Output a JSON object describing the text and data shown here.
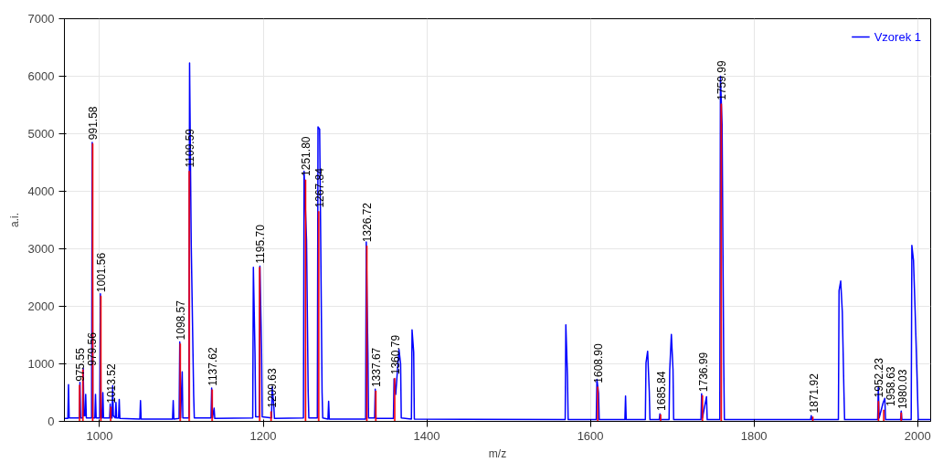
{
  "chart_data": {
    "type": "line",
    "xlabel": "m/z",
    "ylabel": "a.i.",
    "xlim": [
      957,
      2016
    ],
    "xticks": [
      1000,
      1200,
      1400,
      1600,
      1800,
      2000
    ],
    "ylim": [
      0,
      7000
    ],
    "yticks": [
      0,
      1000,
      2000,
      3000,
      4000,
      5000,
      6000,
      7000
    ],
    "grid": true,
    "legend": "top right",
    "series": [
      {
        "name": "Vzorek 1",
        "color": "#0000ff",
        "x": [
          957,
          961.2,
          962,
          962.8,
          975.2,
          976,
          976.8,
          979.2,
          980,
          980.8,
          982.2,
          983,
          983.8,
          990.2,
          991,
          991.8,
          994.2,
          995,
          995.8,
          1000.2,
          1001,
          1001.8,
          1003.2,
          1004,
          1004.8,
          1012.2,
          1013,
          1013.8,
          1015.2,
          1016,
          1016.8,
          1019.2,
          1020,
          1020.8,
          1023.2,
          1024,
          1024.8,
          1049.2,
          1050,
          1050.8,
          1089.2,
          1090,
          1090.8,
          1097.2,
          1098,
          1099,
          1101,
          1101.8,
          1109.2,
          1110,
          1112,
          1115,
          1115.8,
          1136.2,
          1137,
          1138,
          1140,
          1140.8,
          1187.2,
          1188,
          1190,
          1190.8,
          1195.2,
          1196,
          1198,
          1198.8,
          1210.2,
          1211,
          1213,
          1213.8,
          1249.2,
          1250,
          1253,
          1255,
          1255.8,
          1266.2,
          1267,
          1269,
          1270,
          1272,
          1272.8,
          1279.2,
          1280,
          1280.8,
          1325.2,
          1326,
          1328,
          1328.8,
          1336.2,
          1337,
          1337.8,
          1359.2,
          1360,
          1362,
          1366,
          1368,
          1368.8,
          1381.2,
          1382,
          1384,
          1384.8,
          1569.2,
          1570,
          1572,
          1572.8,
          1607.2,
          1608,
          1610,
          1610.8,
          1642.2,
          1643,
          1643.8,
          1667.2,
          1668,
          1670,
          1672,
          1672.8,
          1684.2,
          1685,
          1685.8,
          1696.2,
          1697,
          1699,
          1701,
          1701.8,
          1735.2,
          1736,
          1737,
          1742,
          1742.8,
          1758.2,
          1759,
          1761,
          1763,
          1763.8,
          1869.2,
          1870,
          1870.8,
          1903.2,
          1904,
          1906,
          1908,
          1910,
          1910.8,
          1951.2,
          1952,
          1953,
          1958,
          1960,
          1960.8,
          1979.2,
          1980,
          1980.8,
          1992.2,
          1993,
          1995,
          1997,
          2000,
          2000.8,
          2016
        ],
        "values": [
          50,
          50,
          640,
          60,
          60,
          680,
          60,
          60,
          920,
          100,
          100,
          470,
          60,
          60,
          4850,
          60,
          60,
          470,
          60,
          60,
          2220,
          60,
          60,
          500,
          60,
          60,
          300,
          60,
          60,
          620,
          100,
          60,
          330,
          60,
          60,
          380,
          50,
          40,
          360,
          40,
          40,
          360,
          40,
          50,
          1380,
          60,
          860,
          60,
          60,
          6230,
          3100,
          460,
          60,
          60,
          580,
          60,
          230,
          50,
          60,
          2680,
          1180,
          80,
          80,
          2700,
          1260,
          80,
          60,
          600,
          260,
          50,
          60,
          4350,
          3150,
          520,
          60,
          60,
          5120,
          5080,
          3650,
          500,
          60,
          40,
          350,
          40,
          40,
          3120,
          1200,
          60,
          60,
          560,
          50,
          50,
          740,
          470,
          1250,
          1000,
          60,
          40,
          1590,
          1200,
          40,
          30,
          1680,
          780,
          30,
          30,
          730,
          490,
          30,
          30,
          440,
          30,
          30,
          1020,
          1220,
          520,
          30,
          30,
          130,
          30,
          30,
          890,
          1510,
          900,
          30,
          30,
          480,
          60,
          430,
          30,
          30,
          6000,
          5170,
          1050,
          30,
          30,
          100,
          30,
          30,
          2270,
          2440,
          1900,
          500,
          30,
          30,
          600,
          60,
          330,
          400,
          30,
          30,
          180,
          30,
          30,
          3060,
          2800,
          1930,
          450,
          30,
          30
        ]
      },
      {
        "type": "bar",
        "color": "#ff0000",
        "x": [
          975.55,
          979.56,
          991.58,
          1001.56,
          1013.52,
          1098.57,
          1109.59,
          1137.62,
          1195.7,
          1209.63,
          1251.8,
          1267.84,
          1326.72,
          1337.67,
          1360.79,
          1608.9,
          1685.84,
          1736.99,
          1759.99,
          1871.92,
          1952.23,
          1958.63,
          1980.03
        ],
        "values": [
          630,
          900,
          4830,
          2180,
          250,
          1350,
          4350,
          550,
          2680,
          170,
          4200,
          3650,
          3050,
          530,
          750,
          600,
          120,
          450,
          5520,
          80,
          350,
          200,
          150
        ]
      }
    ],
    "annotations": [
      {
        "text": "975.55",
        "x": 975.55,
        "y": 630
      },
      {
        "text": "979.56",
        "x": 979.56,
        "y": 900
      },
      {
        "text": "991.58",
        "x": 991.58,
        "y": 4830
      },
      {
        "text": "1001.56",
        "x": 1001.56,
        "y": 2180
      },
      {
        "text": "1013.52",
        "x": 1013.52,
        "y": 250
      },
      {
        "text": "1098.57",
        "x": 1098.57,
        "y": 1350
      },
      {
        "text": "1109.59",
        "x": 1109.59,
        "y": 4350
      },
      {
        "text": "1137.62",
        "x": 1137.62,
        "y": 550
      },
      {
        "text": "1195.70",
        "x": 1195.7,
        "y": 2680
      },
      {
        "text": "1209.63",
        "x": 1209.63,
        "y": 170
      },
      {
        "text": "1251.80",
        "x": 1251.8,
        "y": 4200
      },
      {
        "text": "1267.84",
        "x": 1267.84,
        "y": 3650
      },
      {
        "text": "1326.72",
        "x": 1326.72,
        "y": 3050
      },
      {
        "text": "1337.67",
        "x": 1337.67,
        "y": 530
      },
      {
        "text": "1360.79",
        "x": 1360.79,
        "y": 750
      },
      {
        "text": "1608.90",
        "x": 1608.9,
        "y": 600
      },
      {
        "text": "1685.84",
        "x": 1685.84,
        "y": 120
      },
      {
        "text": "1736.99",
        "x": 1736.99,
        "y": 450
      },
      {
        "text": "1759.99",
        "x": 1759.99,
        "y": 5520
      },
      {
        "text": "1871.92",
        "x": 1871.92,
        "y": 80
      },
      {
        "text": "1952.23",
        "x": 1952.23,
        "y": 350
      },
      {
        "text": "1958.63",
        "x": 1958.63,
        "y": 200
      },
      {
        "text": "1980.03",
        "x": 1980.03,
        "y": 150
      }
    ]
  }
}
